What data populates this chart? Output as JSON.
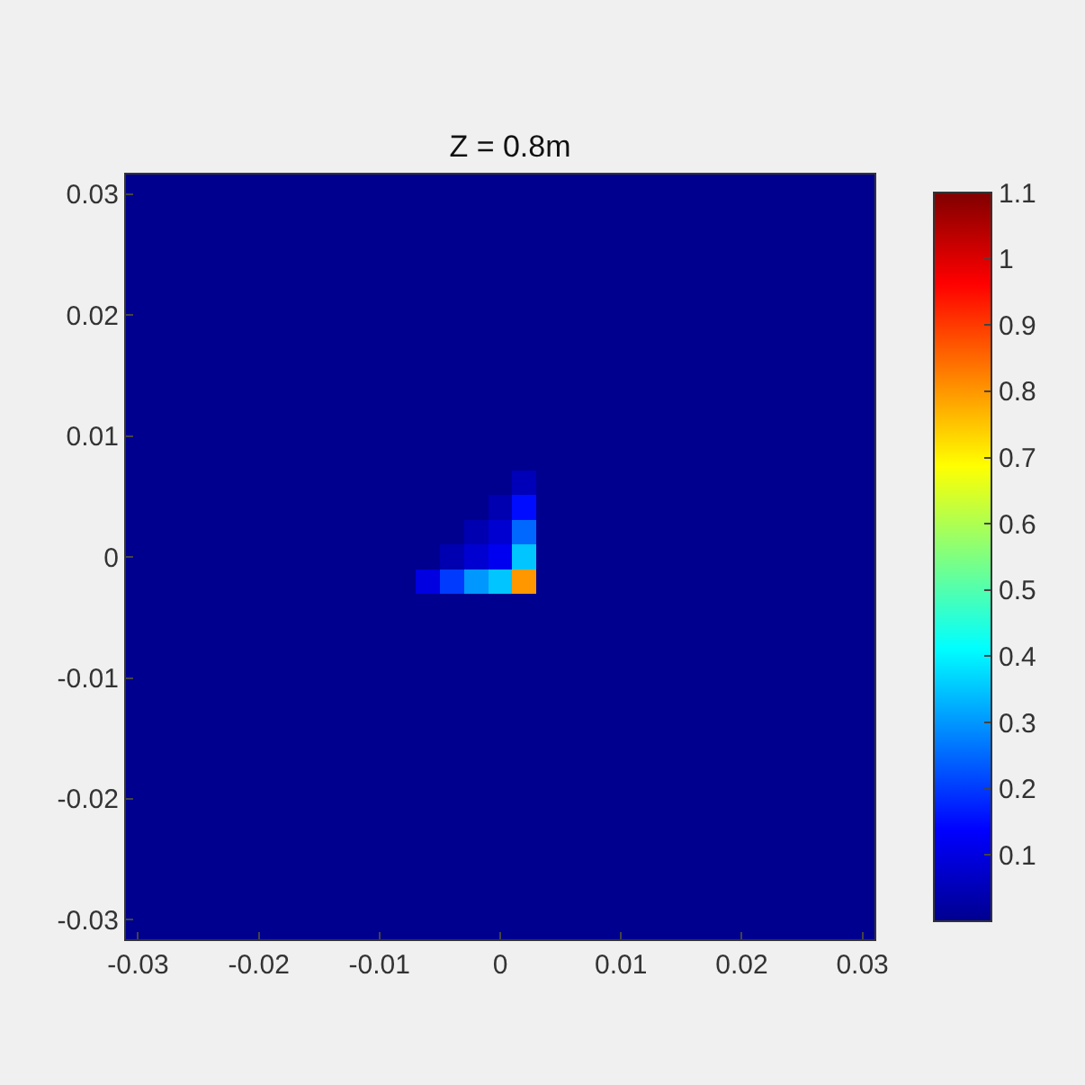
{
  "chart_data": {
    "type": "heatmap",
    "title": "Z = 0.8m",
    "cells": [
      [
        0,
        0,
        0,
        0,
        0,
        0,
        0,
        0,
        0,
        0,
        0,
        0,
        0,
        0,
        0,
        0,
        0,
        0,
        0,
        0,
        0,
        0,
        0,
        0,
        0,
        0,
        0,
        0,
        0,
        0,
        0
      ],
      [
        0,
        0,
        0,
        0,
        0,
        0,
        0,
        0,
        0,
        0,
        0,
        0,
        0,
        0,
        0,
        0,
        0,
        0,
        0,
        0,
        0,
        0,
        0,
        0,
        0,
        0,
        0,
        0,
        0,
        0,
        0
      ],
      [
        0,
        0,
        0,
        0,
        0,
        0,
        0,
        0,
        0,
        0,
        0,
        0,
        0,
        0,
        0,
        0,
        0,
        0,
        0,
        0,
        0,
        0,
        0,
        0,
        0,
        0,
        0,
        0,
        0,
        0,
        0
      ],
      [
        0,
        0,
        0,
        0,
        0,
        0,
        0,
        0,
        0,
        0,
        0,
        0,
        0,
        0,
        0,
        0,
        0,
        0,
        0,
        0,
        0,
        0,
        0,
        0,
        0,
        0,
        0,
        0,
        0,
        0,
        0
      ],
      [
        0,
        0,
        0,
        0,
        0,
        0,
        0,
        0,
        0,
        0,
        0,
        0,
        0,
        0,
        0,
        0,
        0,
        0,
        0,
        0,
        0,
        0,
        0,
        0,
        0,
        0,
        0,
        0,
        0,
        0,
        0
      ],
      [
        0,
        0,
        0,
        0,
        0,
        0,
        0,
        0,
        0,
        0,
        0,
        0,
        0,
        0,
        0,
        0,
        0,
        0,
        0,
        0,
        0,
        0,
        0,
        0,
        0,
        0,
        0,
        0,
        0,
        0,
        0
      ],
      [
        0,
        0,
        0,
        0,
        0,
        0,
        0,
        0,
        0,
        0,
        0,
        0,
        0,
        0,
        0,
        0,
        0,
        0,
        0,
        0,
        0,
        0,
        0,
        0,
        0,
        0,
        0,
        0,
        0,
        0,
        0
      ],
      [
        0,
        0,
        0,
        0,
        0,
        0,
        0,
        0,
        0,
        0,
        0,
        0,
        0,
        0,
        0,
        0,
        0,
        0,
        0,
        0,
        0,
        0,
        0,
        0,
        0,
        0,
        0,
        0,
        0,
        0,
        0
      ],
      [
        0,
        0,
        0,
        0,
        0,
        0,
        0,
        0,
        0,
        0,
        0,
        0,
        0,
        0,
        0,
        0,
        0,
        0,
        0,
        0,
        0,
        0,
        0,
        0,
        0,
        0,
        0,
        0,
        0,
        0,
        0
      ],
      [
        0,
        0,
        0,
        0,
        0,
        0,
        0,
        0,
        0,
        0,
        0,
        0,
        0,
        0,
        0,
        0,
        0,
        0,
        0,
        0,
        0,
        0,
        0,
        0,
        0,
        0,
        0,
        0,
        0,
        0,
        0
      ],
      [
        0,
        0,
        0,
        0,
        0,
        0,
        0,
        0,
        0,
        0,
        0,
        0,
        0,
        0,
        0,
        0,
        0,
        0,
        0,
        0,
        0,
        0,
        0,
        0,
        0,
        0,
        0,
        0,
        0,
        0,
        0
      ],
      [
        0,
        0,
        0,
        0,
        0,
        0,
        0,
        0,
        0,
        0,
        0,
        0,
        0,
        0,
        0,
        0,
        0,
        0,
        0,
        0,
        0,
        0,
        0,
        0,
        0,
        0,
        0,
        0,
        0,
        0,
        0
      ],
      [
        0,
        0,
        0,
        0,
        0,
        0,
        0,
        0,
        0,
        0,
        0,
        0,
        0,
        0,
        0,
        0,
        0.05,
        0,
        0,
        0,
        0,
        0,
        0,
        0,
        0,
        0,
        0,
        0,
        0,
        0,
        0
      ],
      [
        0,
        0,
        0,
        0,
        0,
        0,
        0,
        0,
        0,
        0,
        0,
        0,
        0,
        0,
        0,
        0.04,
        0.15,
        0,
        0,
        0,
        0,
        0,
        0,
        0,
        0,
        0,
        0,
        0,
        0,
        0,
        0
      ],
      [
        0,
        0,
        0,
        0,
        0,
        0,
        0,
        0,
        0,
        0,
        0,
        0,
        0,
        0,
        0.04,
        0.08,
        0.25,
        0,
        0,
        0,
        0,
        0,
        0,
        0,
        0,
        0,
        0,
        0,
        0,
        0,
        0
      ],
      [
        0,
        0,
        0,
        0,
        0,
        0,
        0,
        0,
        0,
        0,
        0,
        0,
        0,
        0.04,
        0.08,
        0.12,
        0.35,
        0,
        0,
        0,
        0,
        0,
        0,
        0,
        0,
        0,
        0,
        0,
        0,
        0,
        0
      ],
      [
        0,
        0,
        0,
        0,
        0,
        0,
        0,
        0,
        0,
        0,
        0,
        0,
        0.1,
        0.2,
        0.3,
        0.35,
        0.8,
        0,
        0,
        0,
        0,
        0,
        0,
        0,
        0,
        0,
        0,
        0,
        0,
        0,
        0
      ],
      [
        0,
        0,
        0,
        0,
        0,
        0,
        0,
        0,
        0,
        0,
        0,
        0,
        0,
        0,
        0,
        0,
        0,
        0,
        0,
        0,
        0,
        0,
        0,
        0,
        0,
        0,
        0,
        0,
        0,
        0,
        0
      ],
      [
        0,
        0,
        0,
        0,
        0,
        0,
        0,
        0,
        0,
        0,
        0,
        0,
        0,
        0,
        0,
        0,
        0,
        0,
        0,
        0,
        0,
        0,
        0,
        0,
        0,
        0,
        0,
        0,
        0,
        0,
        0
      ],
      [
        0,
        0,
        0,
        0,
        0,
        0,
        0,
        0,
        0,
        0,
        0,
        0,
        0,
        0,
        0,
        0,
        0,
        0,
        0,
        0,
        0,
        0,
        0,
        0,
        0,
        0,
        0,
        0,
        0,
        0,
        0
      ],
      [
        0,
        0,
        0,
        0,
        0,
        0,
        0,
        0,
        0,
        0,
        0,
        0,
        0,
        0,
        0,
        0,
        0,
        0,
        0,
        0,
        0,
        0,
        0,
        0,
        0,
        0,
        0,
        0,
        0,
        0,
        0
      ],
      [
        0,
        0,
        0,
        0,
        0,
        0,
        0,
        0,
        0,
        0,
        0,
        0,
        0,
        0,
        0,
        0,
        0,
        0,
        0,
        0,
        0,
        0,
        0,
        0,
        0,
        0,
        0,
        0,
        0,
        0,
        0
      ],
      [
        0,
        0,
        0,
        0,
        0,
        0,
        0,
        0,
        0,
        0,
        0,
        0,
        0,
        0,
        0,
        0,
        0,
        0,
        0,
        0,
        0,
        0,
        0,
        0,
        0,
        0,
        0,
        0,
        0,
        0,
        0
      ],
      [
        0,
        0,
        0,
        0,
        0,
        0,
        0,
        0,
        0,
        0,
        0,
        0,
        0,
        0,
        0,
        0,
        0,
        0,
        0,
        0,
        0,
        0,
        0,
        0,
        0,
        0,
        0,
        0,
        0,
        0,
        0
      ],
      [
        0,
        0,
        0,
        0,
        0,
        0,
        0,
        0,
        0,
        0,
        0,
        0,
        0,
        0,
        0,
        0,
        0,
        0,
        0,
        0,
        0,
        0,
        0,
        0,
        0,
        0,
        0,
        0,
        0,
        0,
        0
      ],
      [
        0,
        0,
        0,
        0,
        0,
        0,
        0,
        0,
        0,
        0,
        0,
        0,
        0,
        0,
        0,
        0,
        0,
        0,
        0,
        0,
        0,
        0,
        0,
        0,
        0,
        0,
        0,
        0,
        0,
        0,
        0
      ],
      [
        0,
        0,
        0,
        0,
        0,
        0,
        0,
        0,
        0,
        0,
        0,
        0,
        0,
        0,
        0,
        0,
        0,
        0,
        0,
        0,
        0,
        0,
        0,
        0,
        0,
        0,
        0,
        0,
        0,
        0,
        0
      ],
      [
        0,
        0,
        0,
        0,
        0,
        0,
        0,
        0,
        0,
        0,
        0,
        0,
        0,
        0,
        0,
        0,
        0,
        0,
        0,
        0,
        0,
        0,
        0,
        0,
        0,
        0,
        0,
        0,
        0,
        0,
        0
      ],
      [
        0,
        0,
        0,
        0,
        0,
        0,
        0,
        0,
        0,
        0,
        0,
        0,
        0,
        0,
        0,
        0,
        0,
        0,
        0,
        0,
        0,
        0,
        0,
        0,
        0,
        0,
        0,
        0,
        0,
        0,
        0
      ],
      [
        0,
        0,
        0,
        0,
        0,
        0,
        0,
        0,
        0,
        0,
        0,
        0,
        0,
        0,
        0,
        0,
        0,
        0,
        0,
        0,
        0,
        0,
        0,
        0,
        0,
        0,
        0,
        0,
        0,
        0,
        0
      ],
      [
        0,
        0,
        0,
        0,
        0,
        0,
        0,
        0,
        0,
        0,
        0,
        0,
        0,
        0,
        0,
        0,
        0,
        0,
        0,
        0,
        0,
        0,
        0,
        0,
        0,
        0,
        0,
        0,
        0,
        0,
        0
      ]
    ],
    "xlim": [
      -0.031,
      0.031
    ],
    "ylim": [
      -0.0316,
      0.0316
    ],
    "xticks": [
      -0.03,
      -0.02,
      -0.01,
      0,
      0.01,
      0.02,
      0.03
    ],
    "yticks": [
      -0.03,
      -0.02,
      -0.01,
      0,
      0.01,
      0.02,
      0.03
    ],
    "clim": [
      0,
      1.1
    ],
    "cticks": [
      0.1,
      0.2,
      0.3,
      0.4,
      0.5,
      0.6,
      0.7,
      0.8,
      0.9,
      1,
      1.1
    ]
  }
}
